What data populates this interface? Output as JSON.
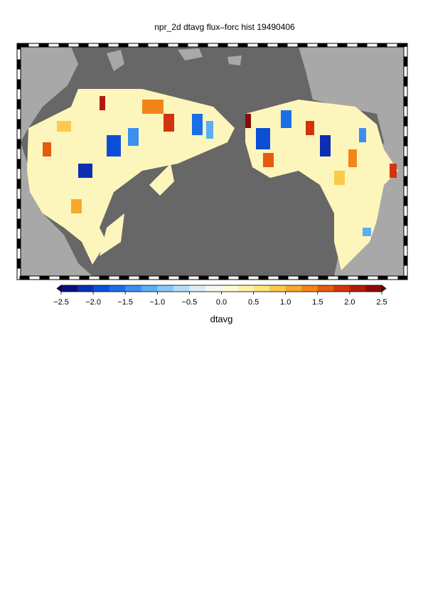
{
  "title": "npr_2d dtavg flux–forc hist 19490406",
  "colorbar": {
    "label": "dtavg",
    "ticks": [
      {
        "value": -2.5,
        "label": "−2.5"
      },
      {
        "value": -2,
        "label": "−2.0"
      },
      {
        "value": -1.5,
        "label": "−1.5"
      },
      {
        "value": -1,
        "label": "−1.0"
      },
      {
        "value": -0.5,
        "label": "−0.5"
      },
      {
        "value": 0,
        "label": "0.0"
      },
      0.5,
      {
        "value": 1,
        "label": "1.0"
      },
      1.5,
      {
        "value": 2,
        "label": "2.0"
      },
      2.5
    ],
    "colors": [
      "#0a0f7a",
      "#0b2fb0",
      "#0a4fd6",
      "#1a6fe8",
      "#3a8ff0",
      "#5aaef5",
      "#86c8f8",
      "#b4def8",
      "#dcecf6",
      "#f6f8f2",
      "#fdfbd6",
      "#fdf3a8",
      "#fde57a",
      "#fcc94c",
      "#f9a82c",
      "#f2841a",
      "#e65a12",
      "#d2340e",
      "#b41a0c",
      "#8c0a08"
    ],
    "under_color": "#060a5a",
    "over_color": "#6a0606"
  }
}
